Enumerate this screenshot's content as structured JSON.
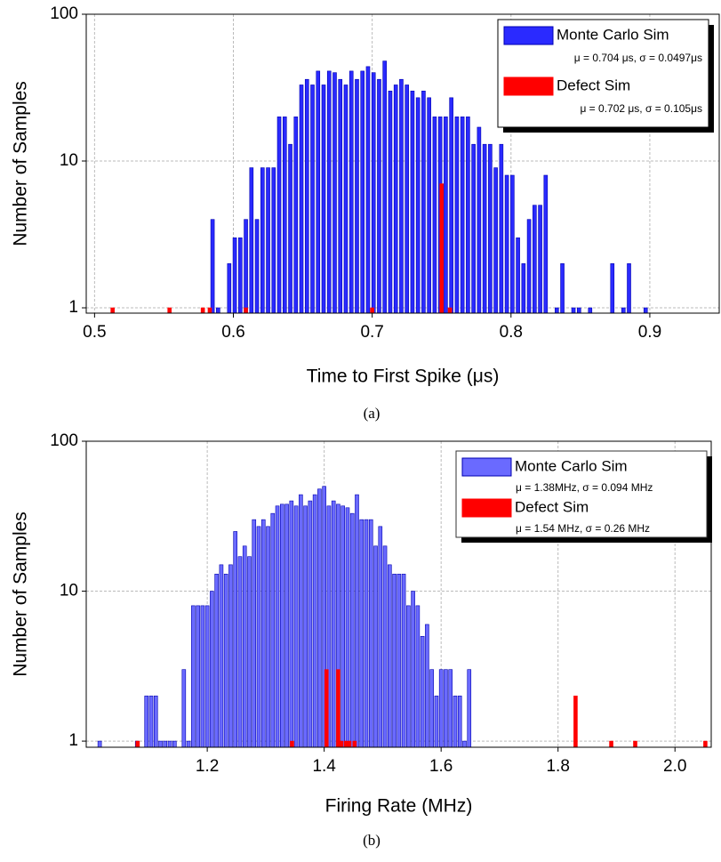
{
  "chart_data": [
    {
      "type": "bar",
      "log_y": true,
      "grid": true,
      "legend": "upper right",
      "xlabel": "Time to First Spike (μs)",
      "ylabel": "Number of Samples",
      "caption": "(a)",
      "xlim": [
        0.494,
        0.95
      ],
      "ylim": [
        0.92,
        100
      ],
      "xticks": [
        0.5,
        0.6,
        0.7,
        0.8,
        0.9
      ],
      "yticks": [
        1,
        10,
        100
      ],
      "series": [
        {
          "name": "Monte Carlo Sim",
          "stats": "μ = 0.704 μs, σ = 0.0497μs",
          "color": "#2a2aff",
          "x": [
            0.585,
            0.589,
            0.597,
            0.601,
            0.605,
            0.609,
            0.613,
            0.617,
            0.621,
            0.625,
            0.629,
            0.633,
            0.637,
            0.641,
            0.645,
            0.649,
            0.653,
            0.657,
            0.661,
            0.665,
            0.669,
            0.673,
            0.677,
            0.681,
            0.685,
            0.689,
            0.693,
            0.697,
            0.701,
            0.705,
            0.709,
            0.713,
            0.717,
            0.721,
            0.725,
            0.729,
            0.733,
            0.737,
            0.741,
            0.745,
            0.749,
            0.753,
            0.757,
            0.761,
            0.765,
            0.769,
            0.773,
            0.777,
            0.781,
            0.785,
            0.789,
            0.793,
            0.797,
            0.801,
            0.805,
            0.809,
            0.813,
            0.817,
            0.821,
            0.825,
            0.833,
            0.837,
            0.845,
            0.849,
            0.857,
            0.873,
            0.881,
            0.885,
            0.897
          ],
          "values": [
            4,
            1,
            2,
            3,
            3,
            4,
            9,
            4,
            9,
            9,
            9,
            20,
            20,
            13,
            20,
            33,
            36,
            33,
            41,
            33,
            41,
            40,
            36,
            33,
            41,
            36,
            41,
            44,
            40,
            36,
            48,
            30,
            33,
            36,
            33,
            30,
            27,
            30,
            27,
            20,
            20,
            20,
            27,
            20,
            20,
            20,
            13,
            17,
            13,
            13,
            9,
            13,
            8,
            8,
            3,
            2,
            4,
            5,
            5,
            8,
            1,
            2,
            1,
            1,
            1,
            2,
            1,
            2,
            1
          ]
        },
        {
          "name": "Defect Sim",
          "stats": "μ = 0.702 μs, σ = 0.105μs",
          "color": "#ff0000",
          "x": [
            0.513,
            0.554,
            0.578,
            0.583,
            0.609,
            0.7,
            0.75,
            0.756
          ],
          "values": [
            1,
            1,
            1,
            1,
            1,
            1,
            7,
            1
          ]
        }
      ]
    },
    {
      "type": "bar",
      "log_y": true,
      "grid": true,
      "legend": "upper right",
      "xlabel": "Firing Rate (MHz)",
      "ylabel": "Number of Samples",
      "caption": "(b)",
      "xlim": [
        0.993,
        2.062
      ],
      "ylim": [
        0.91,
        100
      ],
      "xticks": [
        1.2,
        1.4,
        1.6,
        1.8,
        {
          "value": 2,
          "label": "2.0"
        }
      ],
      "yticks": [
        1,
        10,
        100
      ],
      "series": [
        {
          "name": "Monte Carlo Sim",
          "stats": "μ = 1.38MHz,  σ = 0.094 MHz",
          "color": "#6a6aff",
          "x": [
            1.016,
            1.08,
            1.096,
            1.104,
            1.112,
            1.12,
            1.128,
            1.136,
            1.144,
            1.16,
            1.168,
            1.176,
            1.184,
            1.192,
            1.2,
            1.208,
            1.216,
            1.224,
            1.232,
            1.24,
            1.248,
            1.256,
            1.264,
            1.272,
            1.28,
            1.288,
            1.296,
            1.304,
            1.312,
            1.32,
            1.328,
            1.336,
            1.344,
            1.352,
            1.36,
            1.368,
            1.376,
            1.384,
            1.392,
            1.4,
            1.408,
            1.416,
            1.424,
            1.432,
            1.44,
            1.448,
            1.456,
            1.464,
            1.472,
            1.48,
            1.488,
            1.496,
            1.504,
            1.512,
            1.52,
            1.528,
            1.536,
            1.544,
            1.552,
            1.56,
            1.568,
            1.576,
            1.584,
            1.592,
            1.6,
            1.608,
            1.616,
            1.624,
            1.632,
            1.64,
            1.648
          ],
          "values": [
            1,
            1,
            2,
            2,
            2,
            1,
            1,
            1,
            1,
            3,
            1,
            8,
            8,
            8,
            8,
            10,
            13,
            15,
            13,
            15,
            25,
            17,
            20,
            17,
            30,
            27,
            30,
            27,
            33,
            37,
            38,
            38,
            40,
            37,
            44,
            37,
            40,
            44,
            48,
            50,
            37,
            40,
            38,
            37,
            36,
            33,
            44,
            30,
            30,
            30,
            20,
            27,
            20,
            15,
            13,
            13,
            13,
            8,
            10,
            8,
            5,
            6,
            3,
            2,
            3,
            3,
            3,
            2,
            2,
            1,
            3
          ]
        },
        {
          "name": "Defect Sim",
          "stats": "μ = 1.54 MHz, σ = 0.26 MHz",
          "color": "#ff0000",
          "x": [
            1.081,
            1.345,
            1.404,
            1.424,
            1.429,
            1.437,
            1.443,
            1.452,
            1.83,
            1.891,
            1.932,
            2.052
          ],
          "values": [
            1,
            1,
            3,
            3,
            1,
            1,
            1,
            1,
            2,
            1,
            1,
            1
          ]
        }
      ]
    }
  ]
}
